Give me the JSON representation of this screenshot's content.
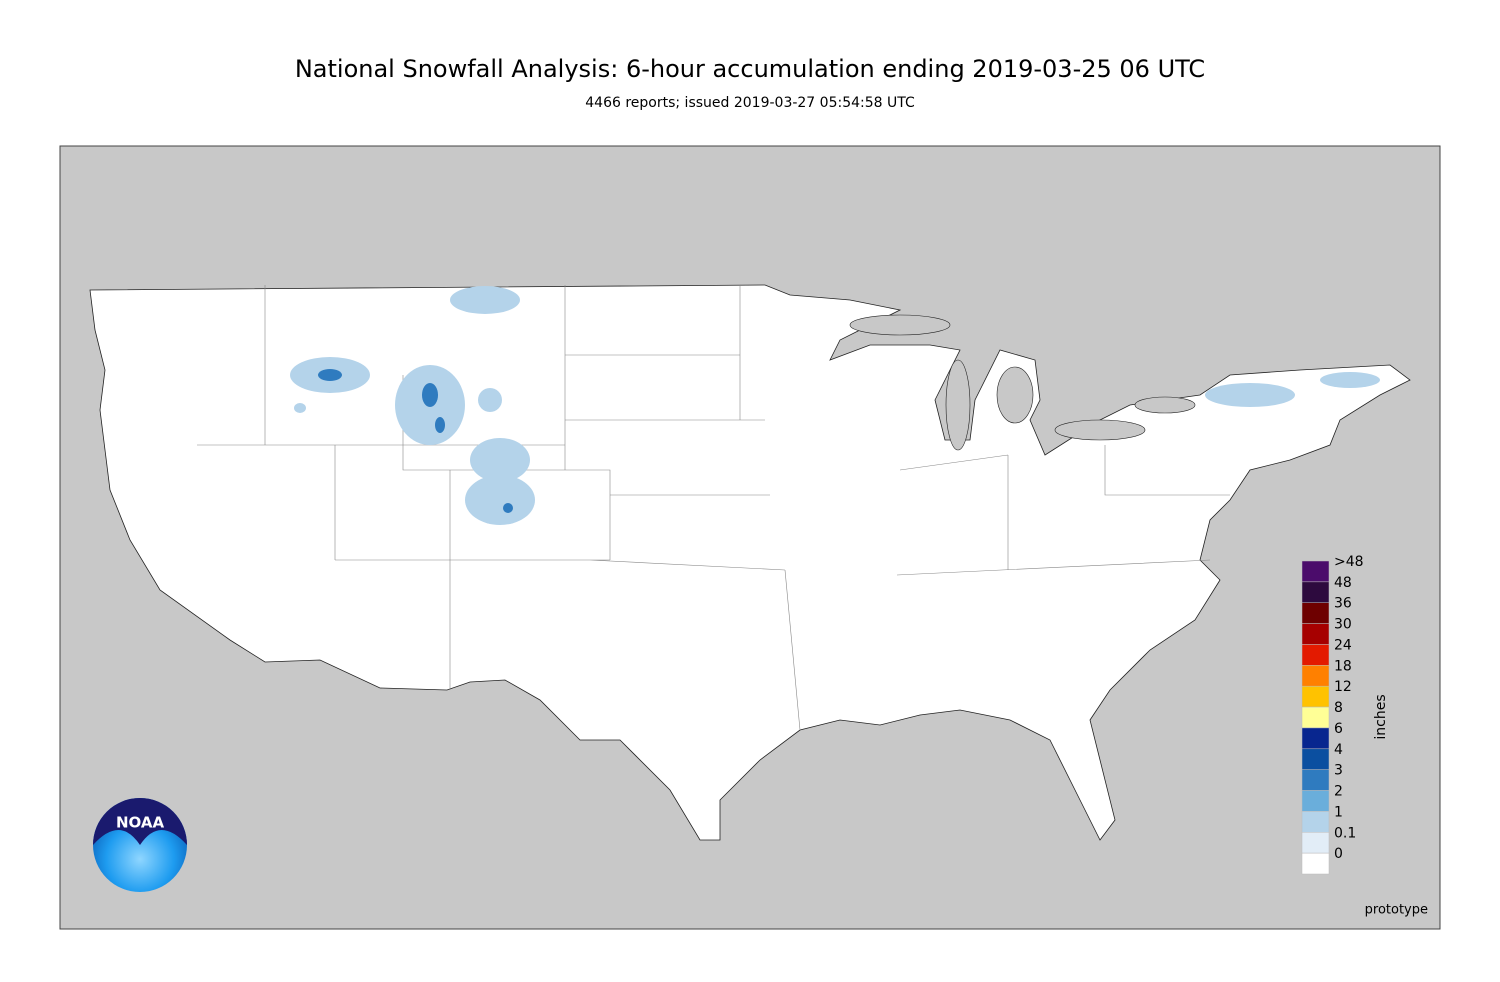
{
  "title": "National Snowfall Analysis: 6-hour accumulation ending 2019-03-25 06 UTC",
  "subtitle": "4466 reports; issued 2019-03-27 05:54:58 UTC",
  "legend": {
    "label": "inches",
    "levels": [
      {
        "label": ">48",
        "color": "#4b0c6b"
      },
      {
        "label": "48",
        "color": "#2d0a3e"
      },
      {
        "label": "36",
        "color": "#6e0000"
      },
      {
        "label": "30",
        "color": "#a60000"
      },
      {
        "label": "24",
        "color": "#e31a00"
      },
      {
        "label": "18",
        "color": "#ff8000"
      },
      {
        "label": "12",
        "color": "#ffc200"
      },
      {
        "label": "8",
        "color": "#ffff96"
      },
      {
        "label": "6",
        "color": "#08268f"
      },
      {
        "label": "4",
        "color": "#0b4fa0"
      },
      {
        "label": "3",
        "color": "#2f7bbf"
      },
      {
        "label": "2",
        "color": "#6aaedb"
      },
      {
        "label": "1",
        "color": "#b4d3ea"
      },
      {
        "label": "0.1",
        "color": "#e2edf7"
      },
      {
        "label": "0",
        "color": "#ffffff"
      }
    ]
  },
  "note": "prototype",
  "logo": "NOAA"
}
